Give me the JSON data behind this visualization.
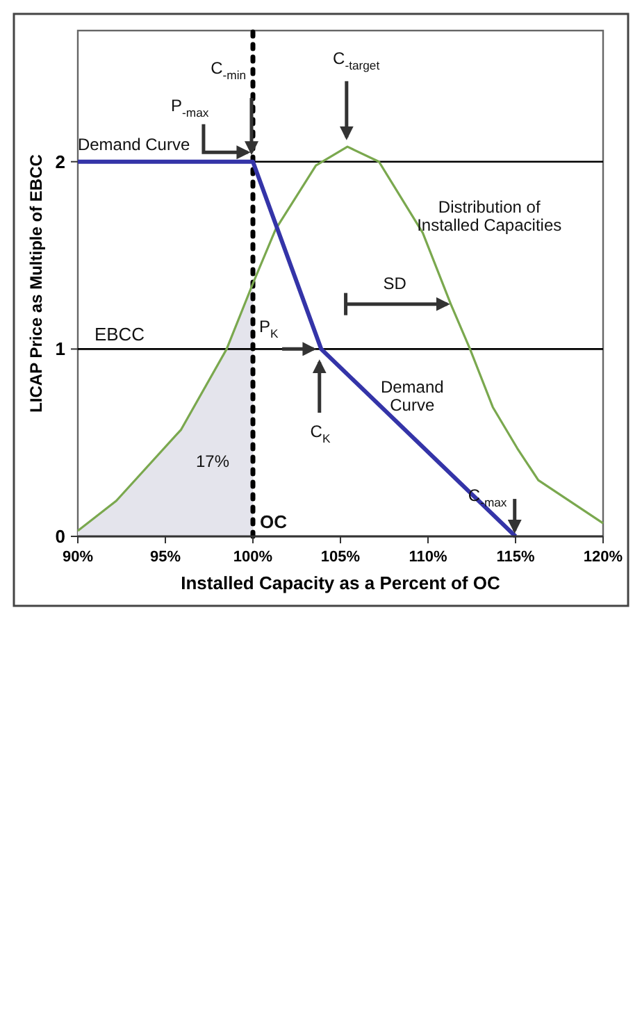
{
  "chart_data": {
    "type": "line",
    "xlabel": "Installed Capacity as a Percent of OC",
    "ylabel": "LICAP Price as Multiple of EBCC",
    "xlim": [
      90,
      120
    ],
    "xticks": [
      {
        "value": 90,
        "label": "90%"
      },
      {
        "value": 95,
        "label": "95%"
      },
      {
        "value": 100,
        "label": "100%"
      },
      {
        "value": 105,
        "label": "105%"
      },
      {
        "value": 110,
        "label": "110%"
      },
      {
        "value": 115,
        "label": "115%"
      },
      {
        "value": 120,
        "label": "120%"
      }
    ],
    "ylim": [
      0,
      2.7
    ],
    "yticks": [
      0,
      1,
      2
    ],
    "marker": "none",
    "series": [
      {
        "type": "area",
        "color": "#e4e4ec",
        "x": [
          90,
          92.2,
          95.9,
          98.5,
          100
        ],
        "values": [
          0.03,
          0.19,
          0.57,
          1.0,
          1.35
        ]
      },
      {
        "color": "#7aa84e",
        "x": [
          90,
          92.2,
          95.9,
          98.5,
          100,
          101.3,
          103.6,
          105.4,
          107.2,
          109.7,
          111.3,
          112.4,
          113.7,
          115.1,
          116.3,
          120
        ],
        "values": [
          0.03,
          0.19,
          0.57,
          1.0,
          1.35,
          1.64,
          1.98,
          2.08,
          2.0,
          1.62,
          1.24,
          1.0,
          0.69,
          0.47,
          0.3,
          0.07
        ]
      },
      {
        "color": "#3434a8",
        "x": [
          90,
          100,
          103.9,
          115
        ],
        "values": [
          2,
          2,
          1,
          0
        ]
      }
    ],
    "ref_lines": [
      {
        "axis": "y",
        "value": 2,
        "color": "#000000",
        "line_style": "solid"
      },
      {
        "axis": "y",
        "value": 1,
        "label": "EBCC",
        "color": "#000000",
        "line_style": "solid"
      },
      {
        "axis": "x",
        "value": 100,
        "label": "OC",
        "color": "#000000",
        "line_style": "dotted"
      }
    ],
    "annotations": [
      "Demand Curve",
      "P$_{-max}$",
      "C$_{-min}$",
      "C$_{-target}$",
      "Distribution of\nInstalled Capacities",
      "SD",
      "Demand\nCurve",
      "P$_{K}$",
      "C$_{K}$",
      "C$_{-max}$",
      "17%"
    ]
  }
}
